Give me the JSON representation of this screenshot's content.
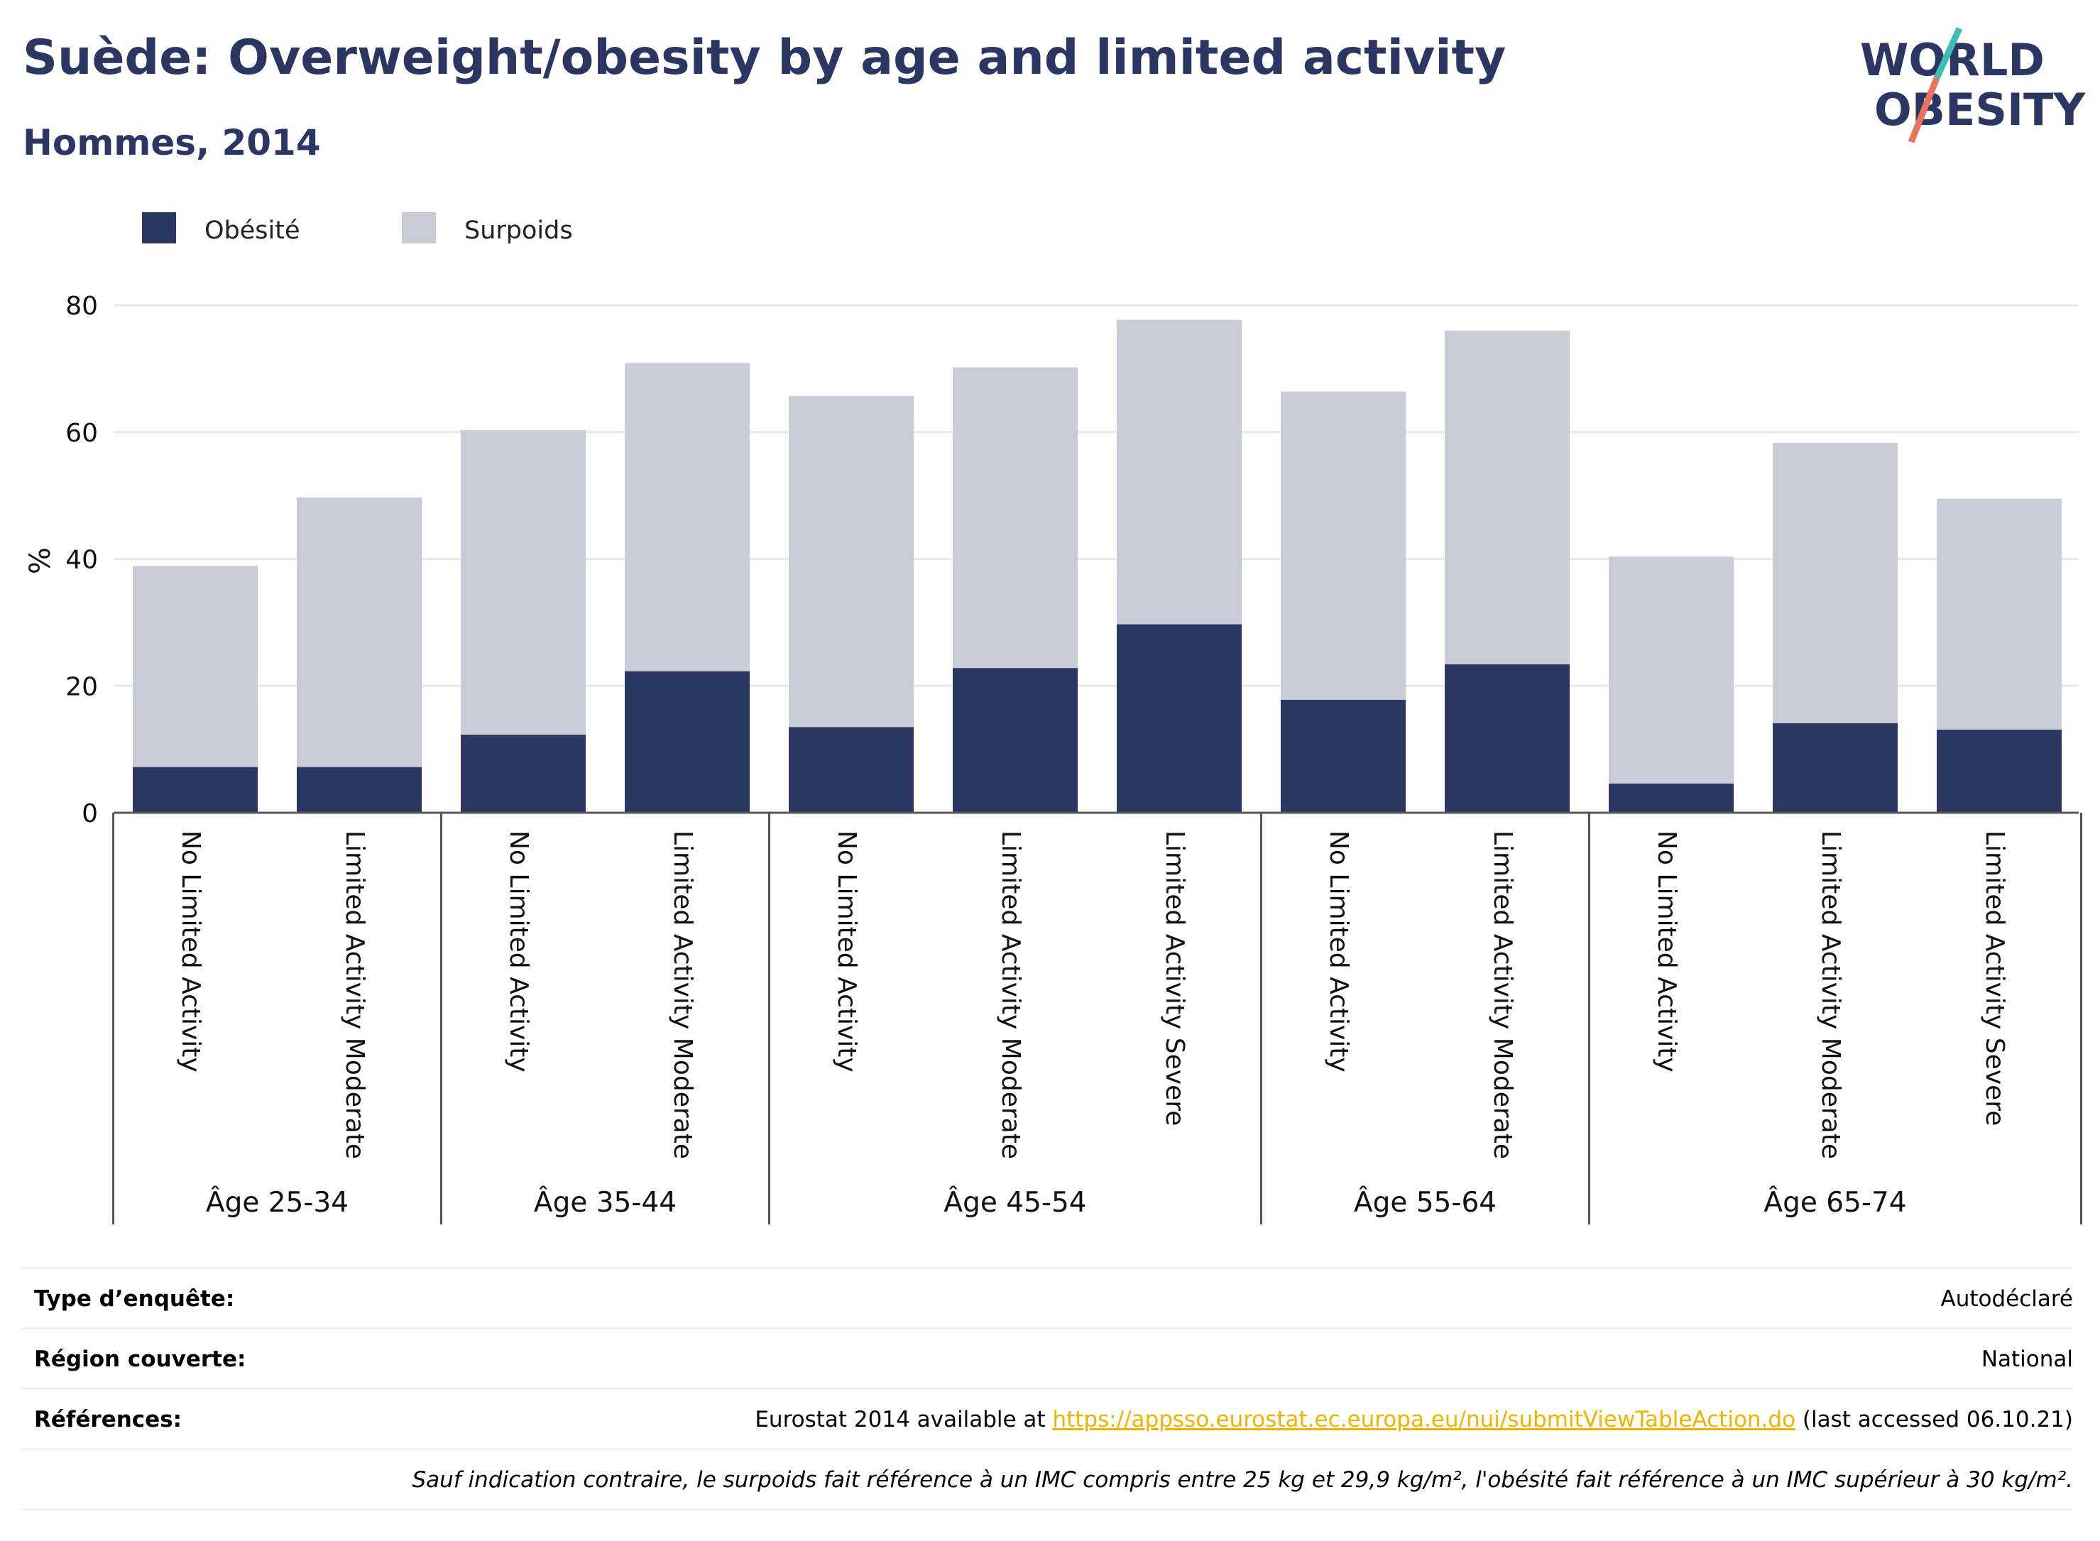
{
  "header": {
    "title": "Suède: Overweight/obesity by age and limited activity",
    "subtitle": "Hommes, 2014"
  },
  "logo": {
    "line1": "WORLD",
    "line2": "OBESITY"
  },
  "colors": {
    "obesity": "#2b3663",
    "overweight": "#c9cbd7",
    "title": "#2b3663",
    "link": "#f0b400",
    "logo_teal": "#3dbcb8",
    "logo_coral": "#e8735f"
  },
  "chart_data": {
    "type": "bar",
    "stacked": true,
    "ylabel": "%",
    "ylim": [
      0,
      80
    ],
    "yticks": [
      0,
      20,
      40,
      60,
      80
    ],
    "grid": true,
    "legend_position": "top-left",
    "groups": [
      {
        "label": "Âge 25-34",
        "categories": [
          "No Limited Activity",
          "Limited Activity Moderate"
        ]
      },
      {
        "label": "Âge 35-44",
        "categories": [
          "No Limited Activity",
          "Limited Activity Moderate"
        ]
      },
      {
        "label": "Âge 45-54",
        "categories": [
          "No Limited Activity",
          "Limited Activity Moderate",
          "Limited Activity Severe"
        ]
      },
      {
        "label": "Âge 55-64",
        "categories": [
          "No Limited Activity",
          "Limited Activity Moderate"
        ]
      },
      {
        "label": "Âge 65-74",
        "categories": [
          "No Limited Activity",
          "Limited Activity Moderate",
          "Limited Activity Severe"
        ]
      }
    ],
    "series": [
      {
        "name": "Obésité",
        "color": "#2b3663",
        "values": [
          7.2,
          7.2,
          12.3,
          22.3,
          13.5,
          22.8,
          29.7,
          17.8,
          23.4,
          4.6,
          14.1,
          13.1
        ]
      },
      {
        "name": "Surpoids",
        "color": "#c9cbd7",
        "values": [
          31.7,
          42.5,
          48.0,
          48.6,
          52.2,
          47.4,
          48.0,
          48.6,
          52.6,
          35.8,
          44.2,
          36.4
        ]
      }
    ]
  },
  "footer": {
    "rows": [
      {
        "label": "Type d’enquête:",
        "value": "Autodéclaré"
      },
      {
        "label": "Région couverte:",
        "value": "National"
      },
      {
        "label": "Références:",
        "value_pre": "Eurostat 2014 available at ",
        "link": "https://appsso.eurostat.ec.europa.eu/nui/submitViewTableAction.do",
        "value_post": " (last accessed 06.10.21)"
      }
    ],
    "note": "Sauf indication contraire, le surpoids fait référence à un IMC compris entre 25 kg et 29,9 kg/m², l'obésité fait référence à un IMC supérieur à 30 kg/m²."
  }
}
